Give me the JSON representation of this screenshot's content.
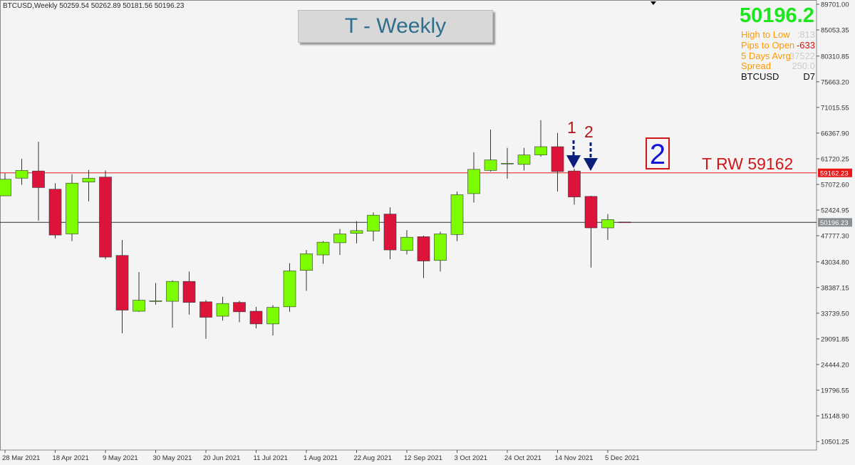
{
  "header": {
    "symbol_line": "BTCUSD,Weekly  50259.54 50262.89 50181.56 50196.23"
  },
  "title_box": "T - Weekly",
  "info_panel": {
    "price": "50196.2",
    "rows": [
      {
        "label": "High to Low",
        "value": ":813",
        "label_color": "#ff9900",
        "value_color": "#cccccc"
      },
      {
        "label": "Pips to Open",
        "value": "-633",
        "label_color": "#ff9900",
        "value_color": "#d81010"
      },
      {
        "label": "5 Days Avrg",
        "value": "37522",
        "label_color": "#ff9900",
        "value_color": "#cccccc"
      },
      {
        "label": "Spread",
        "value": "250.0",
        "label_color": "#ff9900",
        "value_color": "#cccccc"
      },
      {
        "label": "BTCUSD",
        "value": "D7",
        "label_color": "#111111",
        "value_color": "#111111"
      }
    ]
  },
  "annotations": {
    "label_one": "1",
    "label_two": "2",
    "box_two": "2",
    "trw_label": "T RW 59162"
  },
  "colors": {
    "bull": "#7cfc00",
    "bear": "#dc143c",
    "resistance": "#e81818",
    "current_price_line": "#303030",
    "arrow": "#0a1f7a"
  },
  "chart_data": {
    "type": "candlestick",
    "title": "T - Weekly",
    "symbol": "BTCUSD",
    "timeframe": "Weekly",
    "ylim": [
      8300,
      89701
    ],
    "y_ticks": [
      "89701.00",
      "85053.35",
      "80310.85",
      "75663.20",
      "71015.55",
      "66367.90",
      "61720.25",
      "57072.60",
      "52424.95",
      "47777.30",
      "43034.80",
      "38387.15",
      "33739.50",
      "29091.85",
      "24444.20",
      "19796.55",
      "15148.90",
      "10501.25"
    ],
    "x_ticks": [
      "28 Mar 2021",
      "18 Apr 2021",
      "9 May 2021",
      "30 May 2021",
      "20 Jun 2021",
      "11 Jul 2021",
      "1 Aug 2021",
      "22 Aug 2021",
      "12 Sep 2021",
      "3 Oct 2021",
      "24 Oct 2021",
      "14 Nov 2021",
      "5 Dec 2021"
    ],
    "horizontal_lines": [
      {
        "label": "59162.23",
        "value": 59162.23,
        "color": "#e81818",
        "name": "T RW 59162"
      },
      {
        "label": "50196.23",
        "value": 50196.23,
        "color": "#303030"
      }
    ],
    "candles": [
      {
        "o": 55000,
        "h": 59100,
        "l": 55000,
        "c": 58000
      },
      {
        "o": 58200,
        "h": 61700,
        "l": 57000,
        "c": 59600
      },
      {
        "o": 59500,
        "h": 64800,
        "l": 50500,
        "c": 56500
      },
      {
        "o": 56200,
        "h": 57300,
        "l": 47300,
        "c": 47900
      },
      {
        "o": 48100,
        "h": 58900,
        "l": 46800,
        "c": 57300
      },
      {
        "o": 57500,
        "h": 59700,
        "l": 54000,
        "c": 58200
      },
      {
        "o": 58400,
        "h": 59600,
        "l": 43500,
        "c": 43900
      },
      {
        "o": 44200,
        "h": 47000,
        "l": 30100,
        "c": 34300
      },
      {
        "o": 34100,
        "h": 41200,
        "l": 34000,
        "c": 36100
      },
      {
        "o": 36000,
        "h": 39200,
        "l": 35300,
        "c": 36000
      },
      {
        "o": 35900,
        "h": 39700,
        "l": 31100,
        "c": 39500
      },
      {
        "o": 39500,
        "h": 41300,
        "l": 33500,
        "c": 35700
      },
      {
        "o": 35800,
        "h": 36100,
        "l": 29100,
        "c": 33000
      },
      {
        "o": 33200,
        "h": 36700,
        "l": 32400,
        "c": 35500
      },
      {
        "o": 35700,
        "h": 36000,
        "l": 32100,
        "c": 34000
      },
      {
        "o": 34100,
        "h": 34900,
        "l": 31000,
        "c": 31800
      },
      {
        "o": 31800,
        "h": 35200,
        "l": 29700,
        "c": 34800
      },
      {
        "o": 34900,
        "h": 42800,
        "l": 34000,
        "c": 41400
      },
      {
        "o": 41500,
        "h": 45200,
        "l": 37800,
        "c": 44500
      },
      {
        "o": 44300,
        "h": 46800,
        "l": 42700,
        "c": 46600
      },
      {
        "o": 46500,
        "h": 49000,
        "l": 44300,
        "c": 48100
      },
      {
        "o": 48200,
        "h": 50400,
        "l": 46400,
        "c": 48700
      },
      {
        "o": 48600,
        "h": 52000,
        "l": 46800,
        "c": 51500
      },
      {
        "o": 51700,
        "h": 52900,
        "l": 43500,
        "c": 45200
      },
      {
        "o": 45100,
        "h": 48800,
        "l": 44400,
        "c": 47500
      },
      {
        "o": 47600,
        "h": 47800,
        "l": 40100,
        "c": 43200
      },
      {
        "o": 43300,
        "h": 48500,
        "l": 41300,
        "c": 48100
      },
      {
        "o": 48000,
        "h": 55800,
        "l": 46800,
        "c": 55200
      },
      {
        "o": 55400,
        "h": 62900,
        "l": 53800,
        "c": 59800
      },
      {
        "o": 59600,
        "h": 67000,
        "l": 59400,
        "c": 61500
      },
      {
        "o": 60900,
        "h": 63700,
        "l": 58100,
        "c": 60900
      },
      {
        "o": 60700,
        "h": 63700,
        "l": 59600,
        "c": 62400
      },
      {
        "o": 62400,
        "h": 68700,
        "l": 62100,
        "c": 63900
      },
      {
        "o": 63900,
        "h": 66400,
        "l": 55800,
        "c": 59400
      },
      {
        "o": 59500,
        "h": 59900,
        "l": 53400,
        "c": 54800
      },
      {
        "o": 54900,
        "h": 55000,
        "l": 42000,
        "c": 49200
      },
      {
        "o": 49200,
        "h": 51700,
        "l": 47000,
        "c": 50700
      },
      {
        "o": 50259.54,
        "h": 50262.89,
        "l": 50181.56,
        "c": 50196.23
      }
    ]
  }
}
